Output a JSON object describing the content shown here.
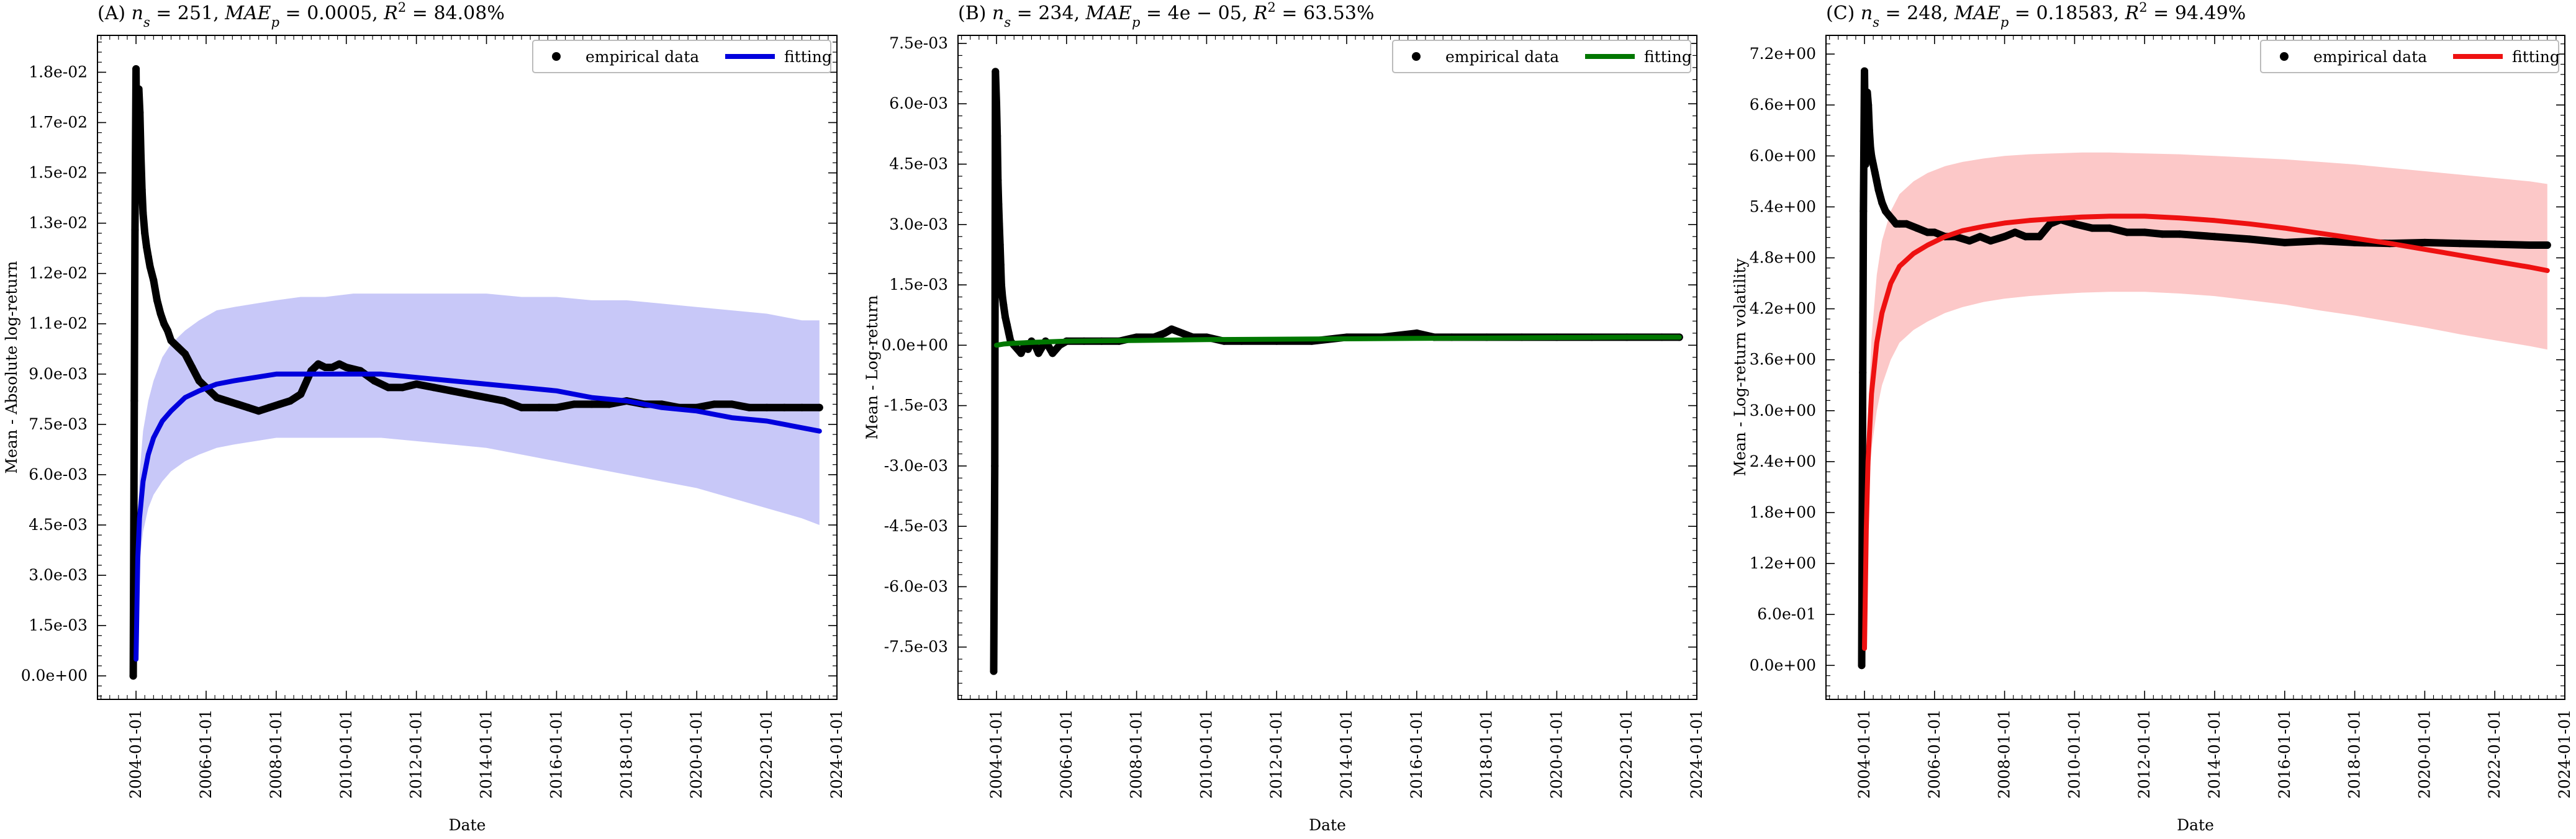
{
  "chart_data": [
    {
      "type": "scatter",
      "panel": "(A)",
      "title": "(A) n_s = 251, MAE_p = 0.0005, R^2 = 84.08%",
      "title_parts": {
        "letter": "(A)",
        "ns": "251",
        "mae": "0.0005",
        "r2": "84.08%"
      },
      "xlabel": "Date",
      "ylabel": "Mean - Absolute log-return",
      "xlim": [
        2002.9,
        2024.0
      ],
      "ylim": [
        -0.0007,
        0.0191
      ],
      "x_ticks": [
        "2004-01-01",
        "2006-01-01",
        "2008-01-01",
        "2010-01-01",
        "2012-01-01",
        "2014-01-01",
        "2016-01-01",
        "2018-01-01",
        "2020-01-01",
        "2022-01-01",
        "2024-01-01"
      ],
      "y_ticks": [
        0.0,
        0.0015,
        0.003,
        0.0045,
        0.006,
        0.0075,
        0.009,
        0.0105,
        0.012,
        0.0135,
        0.015,
        0.0165,
        0.018
      ],
      "y_tick_labels": [
        "0.0e+00",
        "1.5e-03",
        "3.0e-03",
        "4.5e-03",
        "6.0e-03",
        "7.5e-03",
        "9.0e-03",
        "1.1e-02",
        "1.2e-02",
        "1.3e-02",
        "1.5e-02",
        "1.7e-02",
        "1.8e-02"
      ],
      "legend": {
        "placement": "top-right",
        "entries": [
          "empirical data",
          "fitting"
        ]
      },
      "fit_color": "#0000dd",
      "band_color": "#c8c8f8",
      "series": [
        {
          "name": "empirical data",
          "kind": "points",
          "x": [
            2003.92,
            2003.95,
            2003.97,
            2004.0,
            2004.03,
            2004.06,
            2004.08,
            2004.11,
            2004.14,
            2004.17,
            2004.2,
            2004.25,
            2004.3,
            2004.35,
            2004.4,
            2004.5,
            2004.6,
            2004.7,
            2004.8,
            2004.9,
            2005.0,
            2005.2,
            2005.4,
            2005.6,
            2005.8,
            2006.0,
            2006.3,
            2006.6,
            2006.9,
            2007.2,
            2007.5,
            2007.8,
            2008.1,
            2008.4,
            2008.7,
            2009.0,
            2009.2,
            2009.4,
            2009.6,
            2009.8,
            2010.0,
            2010.4,
            2010.8,
            2011.2,
            2011.6,
            2012.0,
            2012.5,
            2013.0,
            2013.5,
            2014.0,
            2014.5,
            2015.0,
            2015.5,
            2016.0,
            2016.5,
            2017.0,
            2017.5,
            2018.0,
            2018.5,
            2019.0,
            2019.5,
            2020.0,
            2020.5,
            2021.0,
            2021.5,
            2022.0,
            2022.5,
            2023.0,
            2023.5
          ],
          "y": [
            0.0,
            0.0082,
            0.0133,
            0.0181,
            0.0142,
            0.016,
            0.0175,
            0.0168,
            0.0155,
            0.0145,
            0.0138,
            0.0132,
            0.0128,
            0.0125,
            0.0122,
            0.0118,
            0.0112,
            0.0108,
            0.0105,
            0.0103,
            0.01,
            0.0098,
            0.0096,
            0.0092,
            0.0088,
            0.0086,
            0.0083,
            0.0082,
            0.0081,
            0.008,
            0.0079,
            0.008,
            0.0081,
            0.0082,
            0.0084,
            0.0091,
            0.0093,
            0.0092,
            0.0092,
            0.0093,
            0.0092,
            0.0091,
            0.0088,
            0.0086,
            0.0086,
            0.0087,
            0.0086,
            0.0085,
            0.0084,
            0.0083,
            0.0082,
            0.008,
            0.008,
            0.008,
            0.0081,
            0.0081,
            0.0081,
            0.0082,
            0.0081,
            0.0081,
            0.008,
            0.008,
            0.0081,
            0.0081,
            0.008,
            0.008,
            0.008,
            0.008,
            0.008
          ]
        },
        {
          "name": "fitting",
          "kind": "line",
          "x": [
            2004.0,
            2004.05,
            2004.1,
            2004.2,
            2004.35,
            2004.5,
            2004.75,
            2005.0,
            2005.4,
            2005.8,
            2006.3,
            2006.8,
            2007.4,
            2008.0,
            2008.7,
            2009.4,
            2010.2,
            2011.0,
            2012.0,
            2013.0,
            2014.0,
            2015.0,
            2016.0,
            2017.0,
            2018.0,
            2019.0,
            2020.0,
            2021.0,
            2022.0,
            2023.0,
            2023.5
          ],
          "y": [
            0.0005,
            0.0035,
            0.0047,
            0.0058,
            0.0066,
            0.0071,
            0.0076,
            0.0079,
            0.0083,
            0.0085,
            0.0087,
            0.0088,
            0.0089,
            0.009,
            0.009,
            0.009,
            0.009,
            0.009,
            0.0089,
            0.0088,
            0.0087,
            0.0086,
            0.0085,
            0.0083,
            0.0082,
            0.008,
            0.0079,
            0.0077,
            0.0076,
            0.0074,
            0.0073
          ]
        },
        {
          "name": "band",
          "kind": "band",
          "x": [
            2004.0,
            2004.05,
            2004.1,
            2004.2,
            2004.35,
            2004.5,
            2004.75,
            2005.0,
            2005.4,
            2005.8,
            2006.3,
            2006.8,
            2007.4,
            2008.0,
            2008.7,
            2009.4,
            2010.2,
            2011.0,
            2012.0,
            2013.0,
            2014.0,
            2015.0,
            2016.0,
            2017.0,
            2018.0,
            2019.0,
            2020.0,
            2021.0,
            2022.0,
            2023.0,
            2023.5
          ],
          "lower": [
            0.0003,
            0.0025,
            0.0034,
            0.0043,
            0.005,
            0.0054,
            0.0058,
            0.0061,
            0.0064,
            0.0066,
            0.0068,
            0.0069,
            0.007,
            0.0071,
            0.0071,
            0.0071,
            0.0071,
            0.0071,
            0.007,
            0.0069,
            0.0068,
            0.0066,
            0.0064,
            0.0062,
            0.006,
            0.0058,
            0.0056,
            0.0053,
            0.005,
            0.0047,
            0.0045
          ],
          "upper": [
            0.0007,
            0.0045,
            0.006,
            0.0073,
            0.0082,
            0.0088,
            0.0095,
            0.0099,
            0.0103,
            0.0106,
            0.0109,
            0.011,
            0.0111,
            0.0112,
            0.0113,
            0.0113,
            0.0114,
            0.0114,
            0.0114,
            0.0114,
            0.0114,
            0.0113,
            0.0113,
            0.0112,
            0.0112,
            0.0111,
            0.011,
            0.0109,
            0.0108,
            0.0106,
            0.0106
          ]
        }
      ]
    },
    {
      "type": "scatter",
      "panel": "(B)",
      "title": "(B) n_s = 234, MAE_p = 4e-05, R^2 = 63.53%",
      "title_parts": {
        "letter": "(B)",
        "ns": "234",
        "mae": "4e − 05",
        "r2": "63.53%"
      },
      "xlabel": "Date",
      "ylabel": "Mean - Log-return",
      "xlim": [
        2002.9,
        2024.0
      ],
      "ylim": [
        -0.0088,
        0.0077
      ],
      "x_ticks": [
        "2004-01-01",
        "2006-01-01",
        "2008-01-01",
        "2010-01-01",
        "2012-01-01",
        "2014-01-01",
        "2016-01-01",
        "2018-01-01",
        "2020-01-01",
        "2022-01-01",
        "2024-01-01"
      ],
      "y_ticks": [
        -0.0075,
        -0.006,
        -0.0045,
        -0.003,
        -0.0015,
        0.0,
        0.0015,
        0.003,
        0.0045,
        0.006,
        0.0075
      ],
      "y_tick_labels": [
        "-7.5e-03",
        "-6.0e-03",
        "-4.5e-03",
        "-3.0e-03",
        "-1.5e-03",
        "0.0e+00",
        "1.5e-03",
        "3.0e-03",
        "4.5e-03",
        "6.0e-03",
        "7.5e-03"
      ],
      "legend": {
        "placement": "top-right",
        "entries": [
          "empirical data",
          "fitting"
        ]
      },
      "fit_color": "#007700",
      "band_color": "#bfe5bf",
      "series": [
        {
          "name": "empirical data",
          "kind": "points",
          "x": [
            2003.92,
            2003.95,
            2003.97,
            2004.0,
            2004.02,
            2004.04,
            2004.06,
            2004.08,
            2004.1,
            2004.12,
            2004.14,
            2004.17,
            2004.2,
            2004.25,
            2004.3,
            2004.35,
            2004.4,
            2004.5,
            2004.6,
            2004.7,
            2004.8,
            2004.9,
            2005.0,
            2005.1,
            2005.2,
            2005.4,
            2005.6,
            2005.8,
            2006.0,
            2006.5,
            2007.0,
            2007.5,
            2008.0,
            2008.5,
            2008.8,
            2009.0,
            2009.3,
            2009.6,
            2010.0,
            2010.5,
            2011.0,
            2012.0,
            2013.0,
            2014.0,
            2015.0,
            2016.0,
            2016.5,
            2017.0,
            2018.0,
            2019.0,
            2020.0,
            2021.0,
            2022.0,
            2023.0,
            2023.5
          ],
          "y": [
            -0.0081,
            -0.003,
            0.0068,
            0.006,
            0.0052,
            0.0041,
            0.0035,
            0.003,
            0.0025,
            0.002,
            0.0015,
            0.0012,
            0.001,
            0.0007,
            0.0005,
            0.0003,
            0.0001,
            0.0,
            -0.0001,
            -0.0002,
            0.0,
            -0.0001,
            0.0001,
            0.0,
            -0.0002,
            0.0001,
            -0.0002,
            0.0,
            0.0001,
            0.0001,
            0.0001,
            0.0001,
            0.0002,
            0.0002,
            0.0003,
            0.0004,
            0.0003,
            0.0002,
            0.0002,
            0.0001,
            0.0001,
            0.0001,
            0.0001,
            0.0002,
            0.0002,
            0.0003,
            0.0002,
            0.0002,
            0.0002,
            0.0002,
            0.0002,
            0.0002,
            0.0002,
            0.0002,
            0.0002
          ]
        },
        {
          "name": "fitting",
          "kind": "line",
          "x": [
            2004.0,
            2004.2,
            2004.5,
            2005.0,
            2006.0,
            2008.0,
            2010.0,
            2012.0,
            2014.0,
            2016.0,
            2018.0,
            2020.0,
            2022.0,
            2023.5
          ],
          "y": [
            0.0,
            3e-05,
            5e-05,
            7e-05,
            0.0001,
            0.00012,
            0.00014,
            0.00015,
            0.00016,
            0.00017,
            0.00018,
            0.00019,
            0.0002,
            0.0002
          ]
        },
        {
          "name": "band",
          "kind": "band",
          "x": [
            2004.0,
            2004.2,
            2004.5,
            2005.0,
            2006.0,
            2008.0,
            2010.0,
            2012.0,
            2014.0,
            2016.0,
            2018.0,
            2020.0,
            2022.0,
            2023.5
          ],
          "lower": [
            -5e-05,
            -2e-05,
            0.0,
            2e-05,
            5e-05,
            7e-05,
            9e-05,
            0.0001,
            0.00011,
            0.00012,
            0.00013,
            0.00014,
            0.00015,
            0.00015
          ],
          "upper": [
            5e-05,
            8e-05,
            0.0001,
            0.00012,
            0.00015,
            0.00017,
            0.00019,
            0.0002,
            0.00021,
            0.00022,
            0.00023,
            0.00024,
            0.00025,
            0.00025
          ]
        }
      ]
    },
    {
      "type": "scatter",
      "panel": "(C)",
      "title": "(C) n_s = 248, MAE_p = 0.18583, R^2 = 94.49%",
      "title_parts": {
        "letter": "(C)",
        "ns": "248",
        "mae": "0.18583",
        "r2": "94.49%"
      },
      "xlabel": "Date",
      "ylabel": "Mean - Log-return volatility",
      "xlim": [
        2002.9,
        2024.0
      ],
      "ylim": [
        -0.4,
        7.42
      ],
      "x_ticks": [
        "2004-01-01",
        "2006-01-01",
        "2008-01-01",
        "2010-01-01",
        "2012-01-01",
        "2014-01-01",
        "2016-01-01",
        "2018-01-01",
        "2020-01-01",
        "2022-01-01",
        "2024-01-01"
      ],
      "y_ticks": [
        0.0,
        0.6,
        1.2,
        1.8,
        2.4,
        3.0,
        3.6,
        4.2,
        4.8,
        5.4,
        6.0,
        6.6,
        7.2
      ],
      "y_tick_labels": [
        "0.0e+00",
        "6.0e-01",
        "1.2e+00",
        "1.8e+00",
        "2.4e+00",
        "3.0e+00",
        "3.6e+00",
        "4.2e+00",
        "4.8e+00",
        "5.4e+00",
        "6.0e+00",
        "6.6e+00",
        "7.2e+00"
      ],
      "legend": {
        "placement": "top-right",
        "entries": [
          "empirical data",
          "fitting"
        ]
      },
      "fit_color": "#ee1111",
      "band_color": "#fcc8c8",
      "series": [
        {
          "name": "empirical data",
          "kind": "points",
          "x": [
            2003.92,
            2003.95,
            2003.97,
            2004.0,
            2004.03,
            2004.06,
            2004.08,
            2004.11,
            2004.14,
            2004.17,
            2004.2,
            2004.25,
            2004.3,
            2004.35,
            2004.4,
            2004.5,
            2004.6,
            2004.7,
            2004.8,
            2004.9,
            2005.0,
            2005.2,
            2005.5,
            2005.8,
            2006.0,
            2006.3,
            2006.6,
            2007.0,
            2007.3,
            2007.6,
            2008.0,
            2008.3,
            2008.6,
            2009.0,
            2009.3,
            2009.6,
            2010.0,
            2010.5,
            2011.0,
            2011.5,
            2012.0,
            2012.5,
            2013.0,
            2014.0,
            2015.0,
            2016.0,
            2017.0,
            2018.0,
            2019.0,
            2020.0,
            2021.0,
            2022.0,
            2023.0,
            2023.5
          ],
          "y": [
            0.0,
            3.45,
            5.35,
            7.0,
            5.9,
            6.5,
            6.75,
            6.6,
            6.3,
            6.1,
            6.0,
            5.9,
            5.8,
            5.7,
            5.6,
            5.45,
            5.35,
            5.3,
            5.25,
            5.2,
            5.2,
            5.2,
            5.15,
            5.1,
            5.1,
            5.05,
            5.05,
            5.0,
            5.05,
            5.0,
            5.05,
            5.1,
            5.05,
            5.05,
            5.2,
            5.25,
            5.2,
            5.15,
            5.15,
            5.1,
            5.1,
            5.08,
            5.08,
            5.05,
            5.02,
            4.98,
            5.0,
            4.98,
            4.97,
            4.98,
            4.97,
            4.96,
            4.95,
            4.95
          ]
        },
        {
          "name": "fitting",
          "kind": "line",
          "x": [
            2004.0,
            2004.05,
            2004.1,
            2004.2,
            2004.35,
            2004.5,
            2004.75,
            2005.0,
            2005.4,
            2005.8,
            2006.3,
            2006.8,
            2007.4,
            2008.0,
            2008.7,
            2009.4,
            2010.2,
            2011.0,
            2012.0,
            2013.0,
            2014.0,
            2015.0,
            2016.0,
            2017.0,
            2018.0,
            2019.0,
            2020.0,
            2021.0,
            2022.0,
            2023.0,
            2023.5
          ],
          "y": [
            0.2,
            1.6,
            2.4,
            3.2,
            3.8,
            4.15,
            4.5,
            4.7,
            4.85,
            4.95,
            5.05,
            5.12,
            5.17,
            5.21,
            5.24,
            5.26,
            5.28,
            5.29,
            5.29,
            5.27,
            5.24,
            5.2,
            5.15,
            5.09,
            5.03,
            4.97,
            4.9,
            4.83,
            4.76,
            4.69,
            4.65
          ]
        },
        {
          "name": "band",
          "kind": "band",
          "x": [
            2004.0,
            2004.05,
            2004.1,
            2004.2,
            2004.35,
            2004.5,
            2004.75,
            2005.0,
            2005.4,
            2005.8,
            2006.3,
            2006.8,
            2007.4,
            2008.0,
            2008.7,
            2009.4,
            2010.2,
            2011.0,
            2012.0,
            2013.0,
            2014.0,
            2015.0,
            2016.0,
            2017.0,
            2018.0,
            2019.0,
            2020.0,
            2021.0,
            2022.0,
            2023.0,
            2023.5
          ],
          "lower": [
            0.15,
            1.2,
            1.9,
            2.55,
            3.0,
            3.3,
            3.6,
            3.8,
            3.95,
            4.05,
            4.15,
            4.22,
            4.28,
            4.32,
            4.35,
            4.37,
            4.39,
            4.4,
            4.4,
            4.38,
            4.35,
            4.3,
            4.25,
            4.18,
            4.12,
            4.05,
            3.98,
            3.9,
            3.83,
            3.76,
            3.72
          ],
          "upper": [
            0.25,
            2.0,
            2.9,
            3.85,
            4.6,
            5.0,
            5.35,
            5.55,
            5.7,
            5.8,
            5.88,
            5.93,
            5.97,
            6.0,
            6.02,
            6.03,
            6.04,
            6.04,
            6.03,
            6.02,
            6.0,
            5.98,
            5.96,
            5.93,
            5.9,
            5.86,
            5.82,
            5.78,
            5.74,
            5.7,
            5.67
          ]
        }
      ]
    }
  ]
}
